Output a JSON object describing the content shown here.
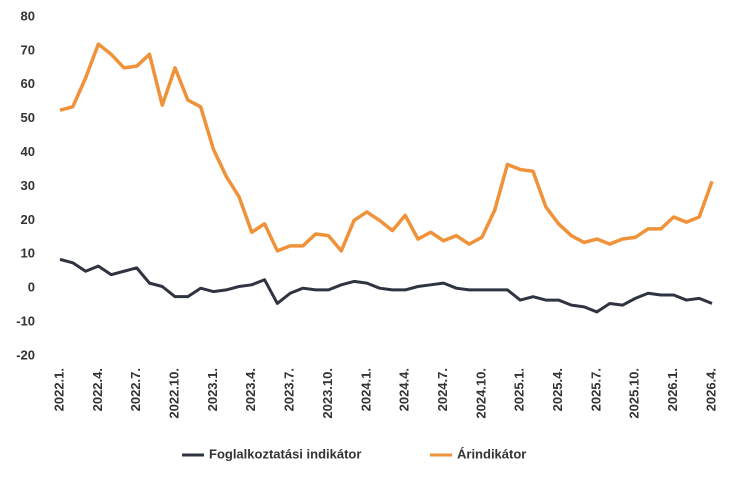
{
  "chart_data": {
    "type": "line",
    "categories": [
      "2022.1.",
      null,
      null,
      "2022.4.",
      null,
      null,
      "2022.7.",
      null,
      null,
      "2022.10.",
      null,
      null,
      "2023.1.",
      null,
      null,
      "2023.4.",
      null,
      null,
      "2023.7.",
      null,
      null,
      "2023.10.",
      null,
      null,
      "2024.1.",
      null,
      null,
      "2024.4.",
      null,
      null,
      "2024.7.",
      null,
      null,
      "2024.10.",
      null,
      null,
      "2025.1.",
      null,
      null,
      "2025.4.",
      null,
      null,
      "2025.7.",
      null,
      null,
      "2025.10.",
      null,
      null,
      "2026.1.",
      null,
      null,
      "2026.4."
    ],
    "series": [
      {
        "name": "Foglalkoztatási indikátor",
        "color": "#2f3440",
        "values": [
          8.5,
          7.5,
          5,
          6.5,
          4,
          5,
          6,
          1.5,
          0.5,
          -2.5,
          -2.5,
          0,
          -1,
          -0.5,
          0.5,
          1,
          2.5,
          -4.5,
          -1.5,
          0,
          -0.5,
          -0.5,
          1,
          2,
          1.5,
          0,
          -0.5,
          -0.5,
          0.5,
          1,
          1.5,
          0,
          -0.5,
          -0.5,
          -0.5,
          -0.5,
          -3.5,
          -2.5,
          -3.5,
          -3.5,
          -5,
          -5.5,
          -7,
          -4.5,
          -5,
          -3,
          -1.5,
          -2,
          -2,
          -3.5,
          -3,
          -4.5
        ]
      },
      {
        "name": "Árindikátor",
        "color": "#f0923a",
        "values": [
          52.5,
          53.5,
          62,
          72,
          69,
          65,
          65.5,
          69,
          54,
          65,
          55.5,
          53.5,
          41,
          33,
          27,
          16.5,
          19,
          11,
          12.5,
          12.5,
          16,
          15.5,
          11,
          20,
          22.5,
          20,
          17,
          21.5,
          14.5,
          16.5,
          14,
          15.5,
          13,
          15,
          23,
          36.5,
          35,
          34.5,
          24,
          19,
          15.5,
          13.5,
          14.5,
          13,
          14.5,
          15,
          17.5,
          17.5,
          21,
          19.5,
          21,
          31.5
        ]
      }
    ],
    "ylim": [
      -20,
      80
    ],
    "yticks": [
      -20,
      -10,
      0,
      10,
      20,
      30,
      40,
      50,
      60,
      70,
      80
    ]
  }
}
